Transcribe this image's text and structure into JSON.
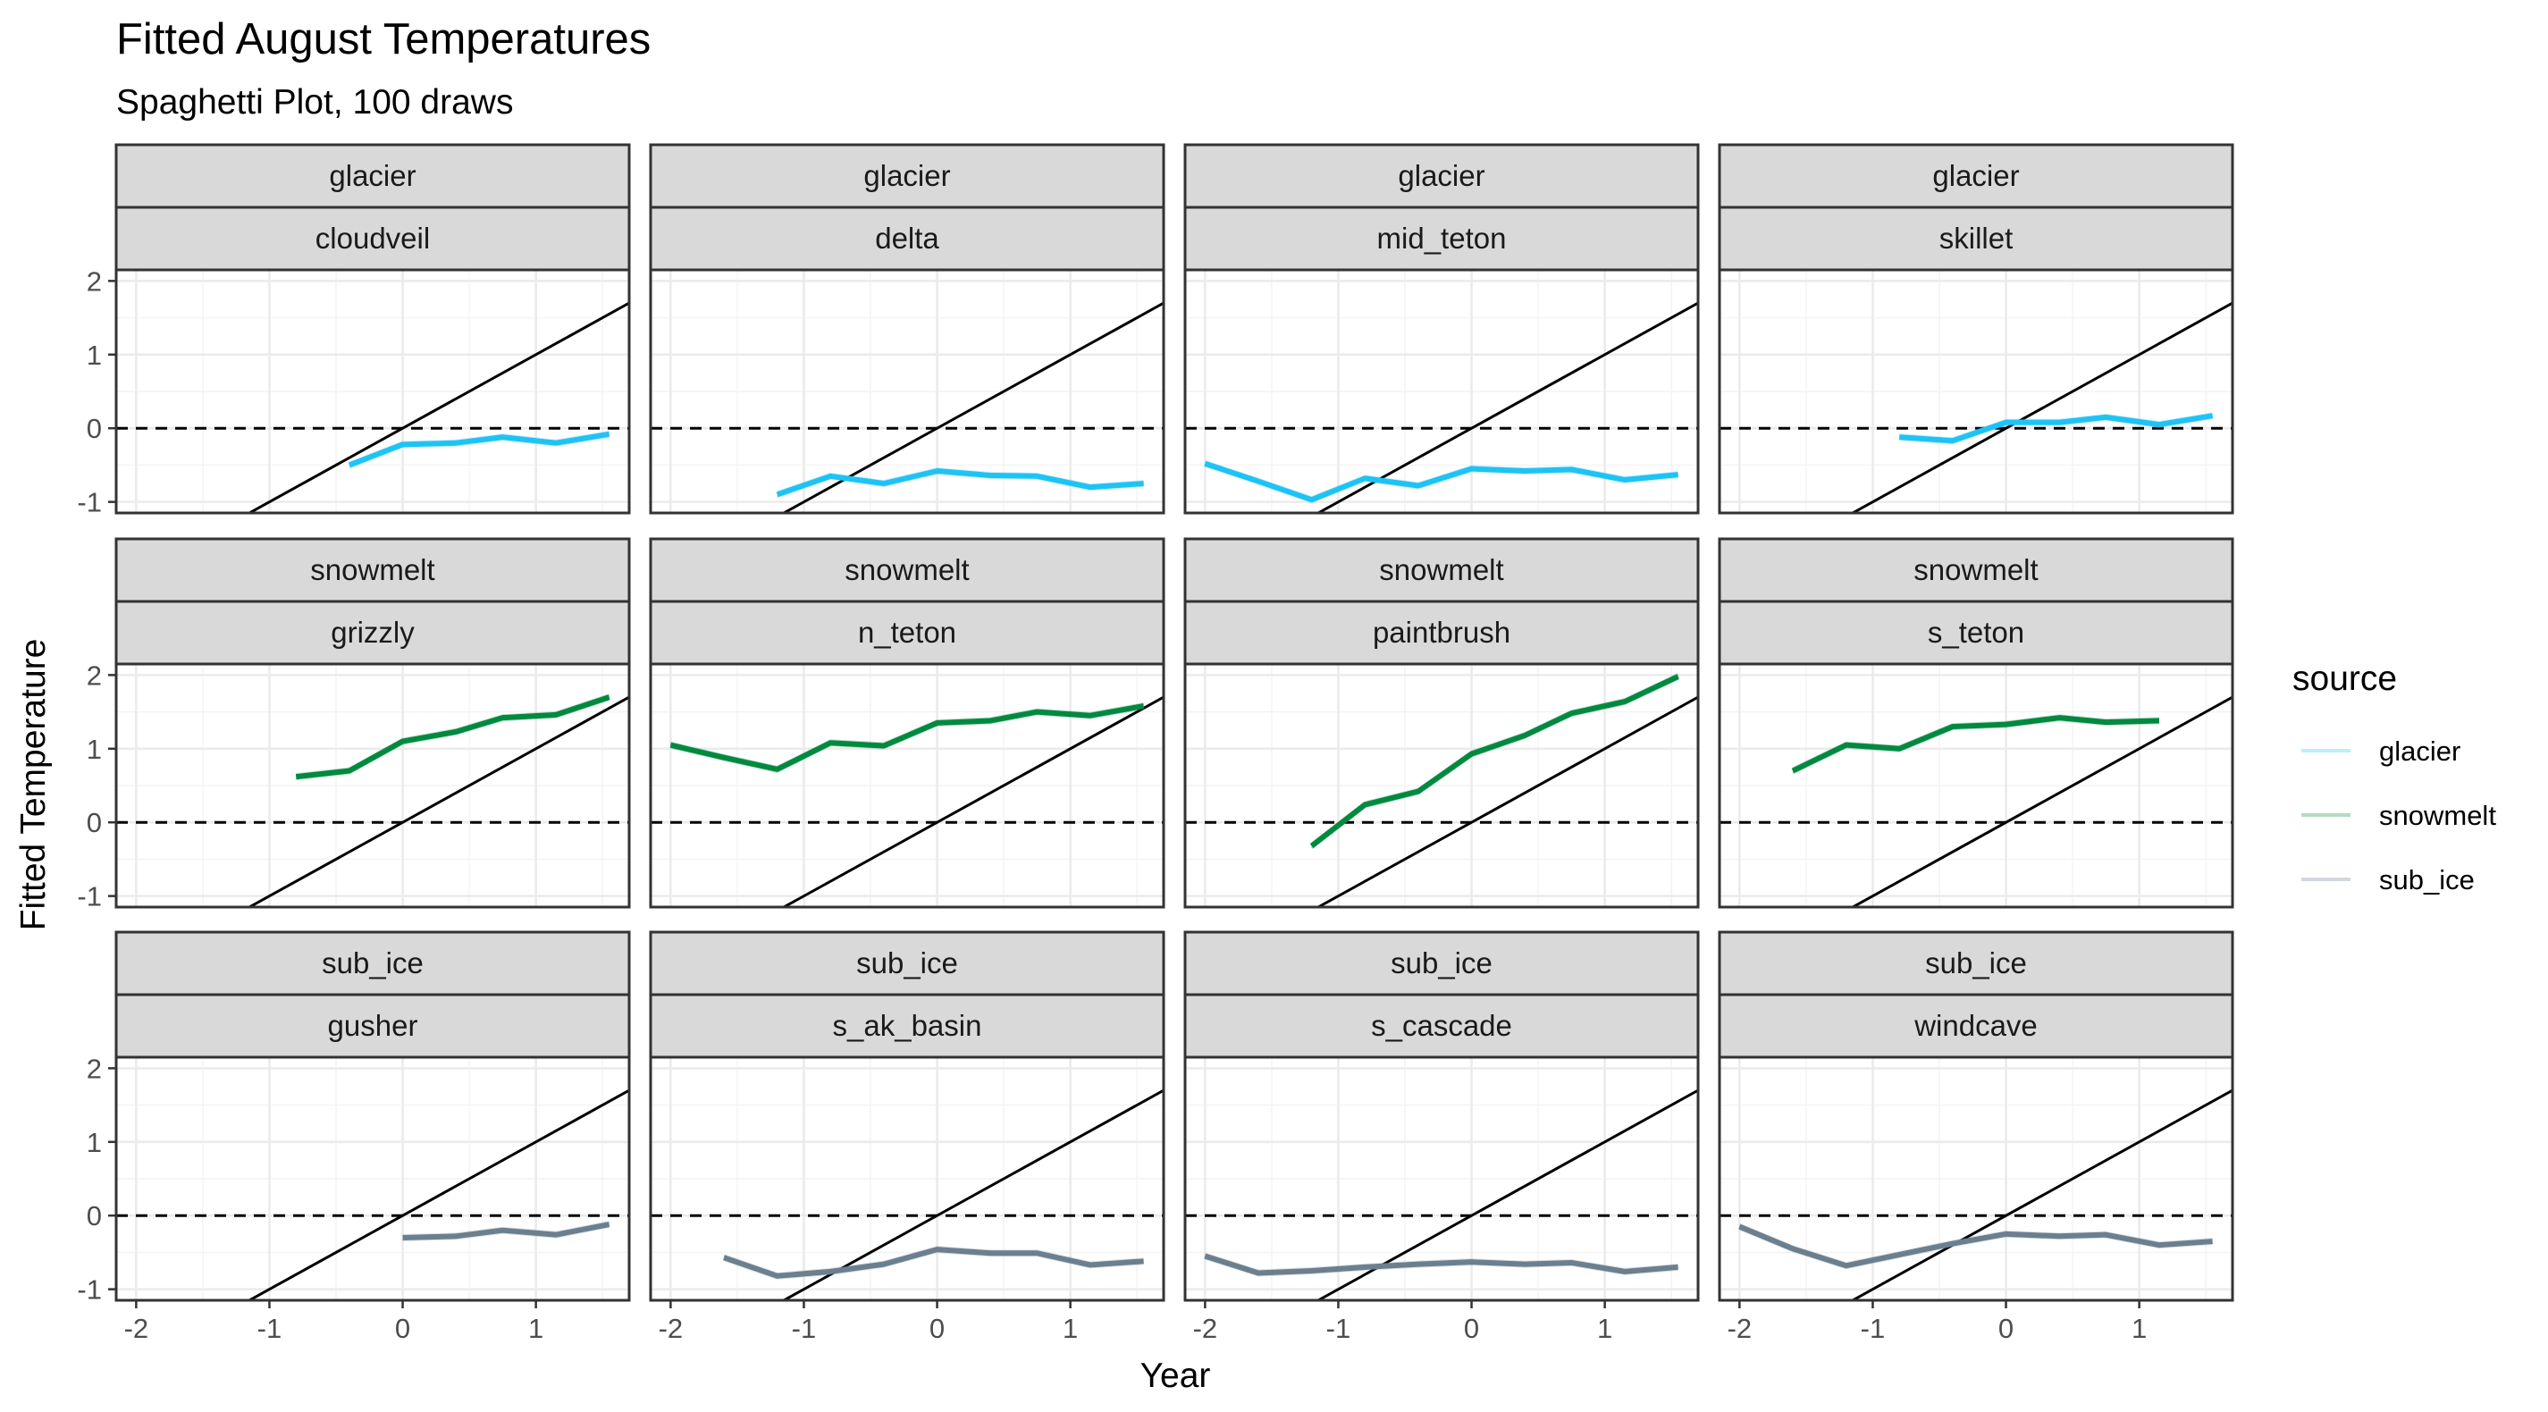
{
  "title": "Fitted August Temperatures",
  "subtitle": "Spaghetti Plot, 100 draws",
  "colors": {
    "glacier": "#1ec3f5",
    "snowmelt": "#00893f",
    "sub_ice": "#6b7f8e"
  },
  "chart_data": {
    "type": "line",
    "xlabel": "Year",
    "ylabel": "Fitted Temperature",
    "xlim": [
      -2.15,
      1.7
    ],
    "ylim": [
      -1.15,
      2.15
    ],
    "x_ticks": [
      -2,
      -1,
      0,
      1
    ],
    "y_ticks": [
      -1,
      0,
      1,
      2
    ],
    "reference_lines": {
      "hline_y": 0,
      "diagonal": {
        "slope": 1,
        "intercept": 0
      }
    },
    "legend": {
      "title": "source",
      "position": "right",
      "entries": [
        "glacier",
        "snowmelt",
        "sub_ice"
      ]
    },
    "panels": [
      {
        "source": "glacier",
        "site": "cloudveil",
        "x": [
          -0.4,
          0,
          0.4,
          0.75,
          1.15,
          1.55
        ],
        "y": [
          -0.5,
          -0.22,
          -0.2,
          -0.12,
          -0.2,
          -0.08
        ]
      },
      {
        "source": "glacier",
        "site": "delta",
        "x": [
          -1.2,
          -0.8,
          -0.4,
          0,
          0.4,
          0.75,
          1.15,
          1.55
        ],
        "y": [
          -0.9,
          -0.65,
          -0.75,
          -0.58,
          -0.64,
          -0.65,
          -0.8,
          -0.75
        ]
      },
      {
        "source": "glacier",
        "site": "mid_teton",
        "x": [
          -2,
          -1.6,
          -1.2,
          -0.8,
          -0.4,
          0,
          0.4,
          0.75,
          1.15,
          1.55
        ],
        "y": [
          -0.48,
          -0.72,
          -0.97,
          -0.68,
          -0.78,
          -0.55,
          -0.58,
          -0.56,
          -0.7,
          -0.63
        ]
      },
      {
        "source": "glacier",
        "site": "skillet",
        "x": [
          -0.8,
          -0.4,
          0,
          0.4,
          0.75,
          1.15,
          1.55
        ],
        "y": [
          -0.12,
          -0.17,
          0.08,
          0.08,
          0.15,
          0.05,
          0.17
        ]
      },
      {
        "source": "snowmelt",
        "site": "grizzly",
        "x": [
          -0.8,
          -0.4,
          0,
          0.4,
          0.75,
          1.15,
          1.55
        ],
        "y": [
          0.62,
          0.7,
          1.1,
          1.23,
          1.42,
          1.46,
          1.7
        ]
      },
      {
        "source": "snowmelt",
        "site": "n_teton",
        "x": [
          -2,
          -1.6,
          -1.2,
          -0.8,
          -0.4,
          0,
          0.4,
          0.75,
          1.15,
          1.55
        ],
        "y": [
          1.05,
          0.88,
          0.72,
          1.08,
          1.04,
          1.35,
          1.38,
          1.5,
          1.45,
          1.58
        ]
      },
      {
        "source": "snowmelt",
        "site": "paintbrush",
        "x": [
          -1.2,
          -0.8,
          -0.4,
          0,
          0.4,
          0.75,
          1.15,
          1.55
        ],
        "y": [
          -0.32,
          0.24,
          0.42,
          0.93,
          1.18,
          1.48,
          1.64,
          1.98
        ]
      },
      {
        "source": "snowmelt",
        "site": "s_teton",
        "x": [
          -1.6,
          -1.2,
          -0.8,
          -0.4,
          0,
          0.4,
          0.75,
          1.15
        ],
        "y": [
          0.7,
          1.05,
          1.0,
          1.3,
          1.33,
          1.42,
          1.36,
          1.38
        ]
      },
      {
        "source": "sub_ice",
        "site": "gusher",
        "x": [
          0,
          0.4,
          0.75,
          1.15,
          1.55
        ],
        "y": [
          -0.3,
          -0.28,
          -0.2,
          -0.26,
          -0.12
        ]
      },
      {
        "source": "sub_ice",
        "site": "s_ak_basin",
        "x": [
          -1.6,
          -1.2,
          -0.8,
          -0.4,
          0,
          0.4,
          0.75,
          1.15,
          1.55
        ],
        "y": [
          -0.57,
          -0.82,
          -0.76,
          -0.66,
          -0.46,
          -0.51,
          -0.51,
          -0.67,
          -0.62
        ]
      },
      {
        "source": "sub_ice",
        "site": "s_cascade",
        "x": [
          -2,
          -1.6,
          -1.2,
          -0.8,
          -0.4,
          0,
          0.4,
          0.75,
          1.15,
          1.55
        ],
        "y": [
          -0.55,
          -0.78,
          -0.75,
          -0.7,
          -0.66,
          -0.63,
          -0.66,
          -0.64,
          -0.76,
          -0.7
        ]
      },
      {
        "source": "sub_ice",
        "site": "windcave",
        "x": [
          -2,
          -1.6,
          -1.2,
          -0.8,
          -0.4,
          0,
          0.4,
          0.75,
          1.15,
          1.55
        ],
        "y": [
          -0.15,
          -0.45,
          -0.68,
          -0.53,
          -0.38,
          -0.25,
          -0.28,
          -0.26,
          -0.4,
          -0.35
        ]
      }
    ]
  }
}
